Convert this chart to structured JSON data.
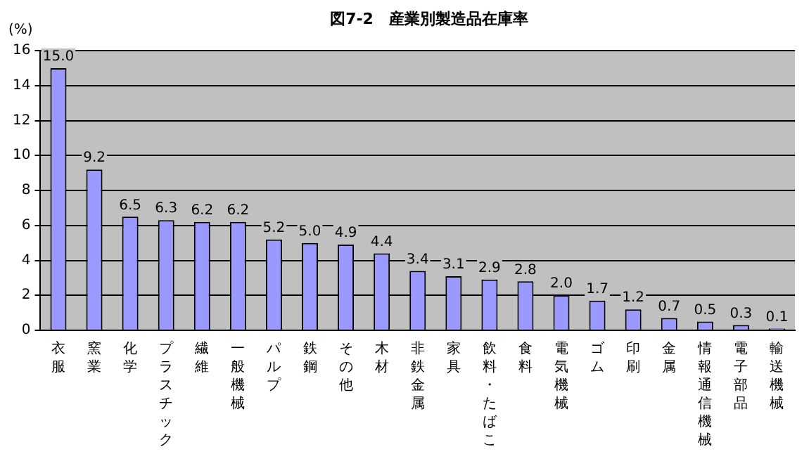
{
  "chart_data": {
    "type": "bar",
    "title": "図7-2　産業別製造品在庫率",
    "ylabel": "(%)",
    "categories": [
      "衣服",
      "窯業",
      "化学",
      "プラスチック",
      "繊維",
      "一般機械",
      "パルプ",
      "鉄鋼",
      "その他",
      "木材",
      "非鉄金属",
      "家具",
      "飲料・たばこ",
      "食料",
      "電気機械",
      "ゴム",
      "印刷",
      "金属",
      "情報通信機械",
      "電子部品",
      "輸送機械"
    ],
    "values": [
      15.0,
      9.2,
      6.5,
      6.3,
      6.2,
      6.2,
      5.2,
      5.0,
      4.9,
      4.4,
      3.4,
      3.1,
      2.9,
      2.8,
      2.0,
      1.7,
      1.2,
      0.7,
      0.5,
      0.3,
      0.1
    ],
    "value_labels": [
      "15.0",
      "9.2",
      "6.5",
      "6.3",
      "6.2",
      "6.2",
      "5.2",
      "5.0",
      "4.9",
      "4.4",
      "3.4",
      "3.1",
      "2.9",
      "2.8",
      "2.0",
      "1.7",
      "1.2",
      "0.7",
      "0.5",
      "0.3",
      "0.1"
    ],
    "color": "#9999ff",
    "ylim": [
      0,
      16
    ],
    "yticks": [
      0,
      2,
      4,
      6,
      8,
      10,
      12,
      14,
      16
    ],
    "grid": "y",
    "legend": false
  }
}
